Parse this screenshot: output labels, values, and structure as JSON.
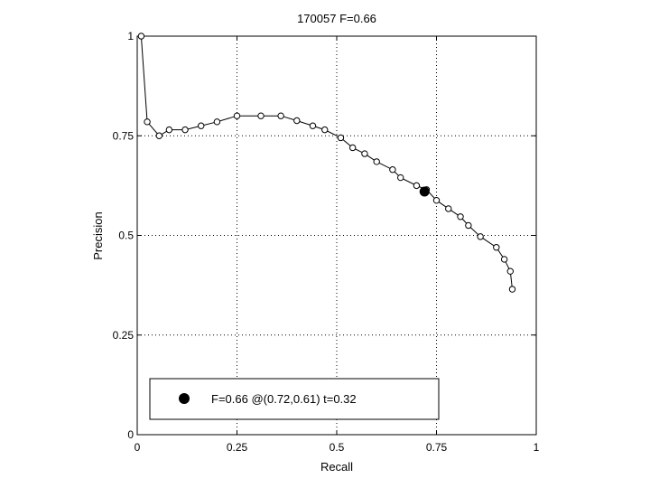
{
  "chart_data": {
    "type": "line",
    "title": "170057 F=0.66",
    "xlabel": "Recall",
    "ylabel": "Precision",
    "xlim": [
      0,
      1
    ],
    "ylim": [
      0,
      1
    ],
    "xticks": [
      0,
      0.25,
      0.5,
      0.75,
      1
    ],
    "yticks": [
      0,
      0.25,
      0.5,
      0.75,
      1
    ],
    "xtick_labels": [
      "0",
      "0.25",
      "0.5",
      "0.75",
      "1"
    ],
    "ytick_labels": [
      "0",
      "0.25",
      "0.5",
      "0.75",
      "1"
    ],
    "grid": true,
    "legend_position": "bottom-left",
    "series": [
      {
        "x": [
          0.01,
          0.025,
          0.055,
          0.08,
          0.12,
          0.16,
          0.2,
          0.25,
          0.31,
          0.36,
          0.4,
          0.44,
          0.47,
          0.51,
          0.54,
          0.57,
          0.6,
          0.64,
          0.66,
          0.7,
          0.725,
          0.75,
          0.78,
          0.81,
          0.83,
          0.86,
          0.9,
          0.92,
          0.935,
          0.94
        ],
        "y": [
          1.0,
          0.785,
          0.75,
          0.765,
          0.765,
          0.775,
          0.785,
          0.8,
          0.8,
          0.8,
          0.788,
          0.775,
          0.765,
          0.745,
          0.72,
          0.705,
          0.685,
          0.665,
          0.645,
          0.625,
          0.615,
          0.588,
          0.567,
          0.547,
          0.525,
          0.497,
          0.47,
          0.44,
          0.41,
          0.365
        ]
      }
    ],
    "highlight_point": {
      "x": 0.72,
      "y": 0.61,
      "label": "F=0.66 @(0.72,0.61) t=0.32"
    }
  }
}
